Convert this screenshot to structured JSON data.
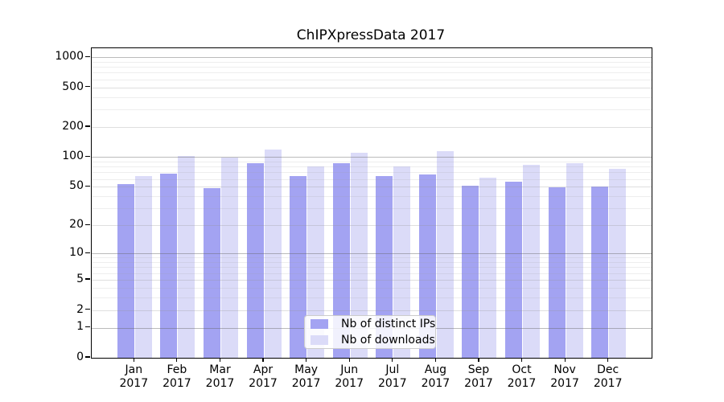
{
  "title": "ChIPXpressData 2017",
  "chart_data": {
    "type": "bar",
    "title": "ChIPXpressData 2017",
    "categories": [
      "Jan",
      "Feb",
      "Mar",
      "Apr",
      "May",
      "Jun",
      "Jul",
      "Aug",
      "Sep",
      "Oct",
      "Nov",
      "Dec"
    ],
    "x_tick_second_line": "2017",
    "series": [
      {
        "name": "Nb of distinct IPs",
        "color": "#a3a3f2",
        "values": [
          53,
          68,
          48,
          86,
          64,
          87,
          64,
          66,
          51,
          56,
          49,
          50
        ]
      },
      {
        "name": "Nb of downloads",
        "color": "#dbdbf8",
        "values": [
          64,
          103,
          98,
          119,
          80,
          110,
          81,
          115,
          62,
          84,
          86,
          76
        ]
      }
    ],
    "yscale": "log1p",
    "ylim": [
      0,
      1227
    ],
    "yticks": [
      0,
      1,
      2,
      5,
      10,
      20,
      50,
      100,
      200,
      500,
      1000
    ],
    "minor_yticks": [
      3,
      4,
      6,
      7,
      8,
      9,
      30,
      40,
      60,
      70,
      80,
      90,
      300,
      400,
      600,
      700,
      800,
      900
    ],
    "grid": true,
    "legend_position": "lower center",
    "colors": {
      "decade_gridline": "rgba(105,105,105,0.45)",
      "labeled_gridline": "rgba(150,150,150,0.30)",
      "minor_gridline": "rgba(160,160,160,0.18)",
      "spine": "#000000",
      "legend_border": "#cccccc",
      "legend_bg": "rgba(255,255,255,0.85)"
    }
  }
}
